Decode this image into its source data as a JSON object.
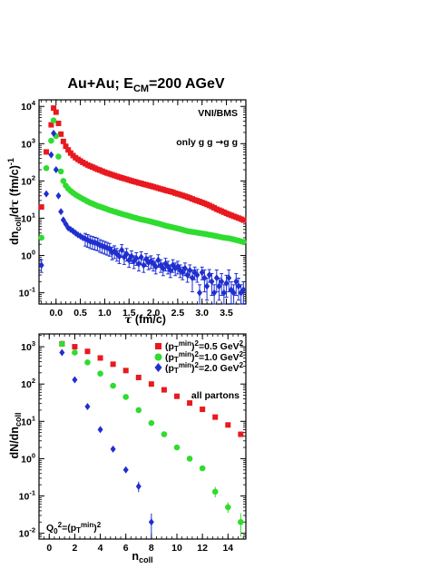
{
  "chart_data": [
    {
      "type": "scatter",
      "title": "Au+Au; E_CM=200 AGeV",
      "xlabel": "τ (fm/c)",
      "ylabel": "dn_coll/dτ (fm/c)^-1",
      "yscale": "log",
      "xlim": [
        -0.35,
        3.9
      ],
      "ylim": [
        0.05,
        15000
      ],
      "x_ticks": [
        "0.0",
        "0.5",
        "1.0",
        "1.5",
        "2.0",
        "2.5",
        "3.0",
        "3.5"
      ],
      "annotations": [
        "VNI/BMS",
        "only g g → g g"
      ],
      "series": [
        {
          "color": "#e8191f",
          "marker": "square",
          "x": [
            -0.3,
            -0.2,
            -0.1,
            -0.05,
            0.0,
            0.05,
            0.1,
            0.15,
            0.2,
            0.25,
            0.3,
            0.35,
            0.4,
            0.45,
            0.5,
            0.55,
            0.6,
            0.65,
            0.7,
            0.75,
            0.8,
            0.85,
            0.9,
            0.95,
            1.0,
            1.05,
            1.1,
            1.15,
            1.2,
            1.25,
            1.3,
            1.35,
            1.4,
            1.45,
            1.5,
            1.55,
            1.6,
            1.65,
            1.7,
            1.75,
            1.8,
            1.85,
            1.9,
            1.95,
            2.0,
            2.05,
            2.1,
            2.15,
            2.2,
            2.25,
            2.3,
            2.35,
            2.4,
            2.45,
            2.5,
            2.55,
            2.6,
            2.65,
            2.7,
            2.75,
            2.8,
            2.85,
            2.9,
            2.95,
            3.0,
            3.05,
            3.1,
            3.15,
            3.2,
            3.25,
            3.3,
            3.35,
            3.4,
            3.45,
            3.5,
            3.55,
            3.6,
            3.65,
            3.7,
            3.75,
            3.8,
            3.85
          ],
          "y": [
            20,
            600,
            3200,
            9000,
            7000,
            3500,
            1800,
            1150,
            850,
            680,
            560,
            480,
            420,
            380,
            345,
            315,
            290,
            268,
            250,
            235,
            220,
            205,
            195,
            183,
            172,
            163,
            155,
            147,
            140,
            133,
            127,
            121,
            116,
            111,
            106,
            101,
            97,
            93,
            89,
            86,
            82,
            79,
            76,
            73,
            70,
            67,
            64,
            61,
            59,
            56,
            54,
            52,
            50,
            47,
            45,
            43,
            41,
            39,
            37,
            35,
            33,
            31,
            29.5,
            28,
            26.5,
            25,
            23.5,
            22,
            20.5,
            19,
            17.5,
            16.5,
            15.5,
            14.5,
            13.5,
            12.7,
            12,
            11.3,
            10.7,
            10.1,
            9.5,
            8.9
          ]
        },
        {
          "color": "#2fdc2f",
          "marker": "circle",
          "x": [
            -0.3,
            -0.2,
            -0.1,
            -0.05,
            0.0,
            0.05,
            0.1,
            0.15,
            0.2,
            0.25,
            0.3,
            0.35,
            0.4,
            0.45,
            0.5,
            0.55,
            0.6,
            0.65,
            0.7,
            0.75,
            0.8,
            0.85,
            0.9,
            0.95,
            1.0,
            1.05,
            1.1,
            1.15,
            1.2,
            1.25,
            1.3,
            1.35,
            1.4,
            1.45,
            1.5,
            1.55,
            1.6,
            1.65,
            1.7,
            1.75,
            1.8,
            1.85,
            1.9,
            1.95,
            2.0,
            2.05,
            2.1,
            2.15,
            2.2,
            2.25,
            2.3,
            2.35,
            2.4,
            2.45,
            2.5,
            2.55,
            2.6,
            2.65,
            2.7,
            2.75,
            2.8,
            2.85,
            2.9,
            2.95,
            3.0,
            3.05,
            3.1,
            3.15,
            3.2,
            3.25,
            3.3,
            3.35,
            3.4,
            3.45,
            3.5,
            3.55,
            3.6,
            3.65,
            3.7,
            3.75,
            3.8,
            3.85
          ],
          "y": [
            3,
            220,
            1200,
            4200,
            1600,
            450,
            180,
            100,
            75,
            62,
            54,
            48,
            43,
            39,
            36,
            33,
            30.5,
            28,
            26,
            24.5,
            23,
            21.5,
            20.5,
            19.5,
            18.5,
            17.5,
            16.5,
            15.8,
            15,
            14.3,
            13.7,
            13.1,
            12.5,
            12,
            11.5,
            11,
            10.5,
            10.1,
            9.7,
            9.3,
            9,
            8.7,
            8.4,
            8.1,
            7.8,
            7.5,
            7.2,
            6.9,
            6.6,
            6.3,
            6.1,
            5.9,
            5.7,
            5.5,
            5.3,
            5.1,
            4.9,
            4.7,
            4.5,
            4.4,
            4.3,
            4.2,
            4.1,
            4.0,
            3.9,
            3.8,
            3.7,
            3.6,
            3.5,
            3.4,
            3.3,
            3.2,
            3.1,
            3.0,
            2.95,
            2.9,
            2.8,
            2.7,
            2.6,
            2.5,
            2.4,
            2.3
          ]
        },
        {
          "color": "#1f2fd0",
          "marker": "diamond",
          "x": [
            -0.3,
            -0.2,
            -0.1,
            -0.05,
            0.0,
            0.05,
            0.1,
            0.15,
            0.2,
            0.25,
            0.3,
            0.35,
            0.4,
            0.45,
            0.5,
            0.55,
            0.6,
            0.65,
            0.7,
            0.75,
            0.8,
            0.85,
            0.9,
            0.95,
            1.0,
            1.05,
            1.1,
            1.15,
            1.2,
            1.25,
            1.3,
            1.35,
            1.4,
            1.45,
            1.5,
            1.55,
            1.6,
            1.65,
            1.7,
            1.75,
            1.8,
            1.85,
            1.9,
            1.95,
            2.0,
            2.05,
            2.1,
            2.15,
            2.2,
            2.25,
            2.3,
            2.35,
            2.4,
            2.45,
            2.5,
            2.55,
            2.6,
            2.65,
            2.7,
            2.75,
            2.8,
            2.85,
            2.9,
            2.95,
            3.0,
            3.05,
            3.1,
            3.15,
            3.2,
            3.25,
            3.3,
            3.35,
            3.4,
            3.45,
            3.5,
            3.55,
            3.6,
            3.65,
            3.7,
            3.75,
            3.8,
            3.85
          ],
          "y": [
            0.55,
            45,
            500,
            1900,
            200,
            40,
            15,
            9,
            7,
            5.5,
            5,
            4.5,
            4,
            3.6,
            3.3,
            3,
            2.8,
            2.6,
            2.4,
            2.3,
            2.2,
            2.1,
            1.9,
            1.8,
            1.7,
            1.6,
            1.5,
            1.2,
            1.3,
            1.1,
            0.95,
            1.4,
            0.9,
            1.1,
            0.75,
            0.95,
            0.7,
            0.85,
            0.6,
            0.9,
            0.55,
            0.8,
            0.65,
            0.7,
            0.6,
            0.5,
            0.75,
            0.55,
            0.45,
            0.6,
            0.5,
            0.4,
            0.55,
            0.45,
            0.5,
            0.4,
            0.35,
            0.45,
            0.3,
            0.4,
            0.25,
            0.35,
            0.3,
            0.1,
            0.35,
            0.25,
            0.15,
            0.3,
            0.2,
            0.1,
            0.25,
            0.15,
            0.2,
            0.1,
            0.18,
            0.25,
            0.12,
            0.1,
            0.2,
            0.15,
            0.1,
            0.12
          ],
          "yerr_frac": 0.4
        }
      ]
    },
    {
      "type": "scatter",
      "xlabel": "n_coll",
      "ylabel": "dN/dn_coll",
      "yscale": "log",
      "xlim": [
        -0.8,
        15.4
      ],
      "ylim": [
        0.007,
        2200
      ],
      "x_ticks": [
        "0",
        "2",
        "4",
        "6",
        "8",
        "10",
        "12",
        "14"
      ],
      "annotations": [
        "all partons",
        "Q_0^2=(p_T^min)^2"
      ],
      "series": [
        {
          "name": "(p_T^min)^2=0.5 GeV^2",
          "color": "#e8191f",
          "marker": "square",
          "x": [
            1,
            2,
            3,
            4,
            5,
            6,
            7,
            8,
            9,
            10,
            11,
            12,
            13,
            14,
            15
          ],
          "y": [
            1200,
            1000,
            750,
            500,
            340,
            230,
            150,
            100,
            70,
            47,
            31,
            21,
            13,
            8,
            4.5
          ]
        },
        {
          "name": "(p_T^min)^2=1.0 GeV^2",
          "color": "#2fdc2f",
          "marker": "circle",
          "x": [
            1,
            2,
            3,
            4,
            5,
            6,
            7,
            8,
            9,
            10,
            11,
            12,
            13,
            14,
            15
          ],
          "y": [
            1200,
            700,
            380,
            190,
            90,
            45,
            20,
            9,
            4.5,
            2,
            1,
            0.55,
            0.13,
            0.05,
            0.02
          ]
        },
        {
          "name": "(p_T^min)^2=2.0 GeV^2",
          "color": "#1f2fd0",
          "marker": "diamond",
          "x": [
            1,
            2,
            3,
            4,
            5,
            6,
            7,
            8
          ],
          "y": [
            700,
            130,
            25,
            6,
            1.8,
            0.5,
            0.18,
            0.02
          ]
        }
      ]
    }
  ]
}
